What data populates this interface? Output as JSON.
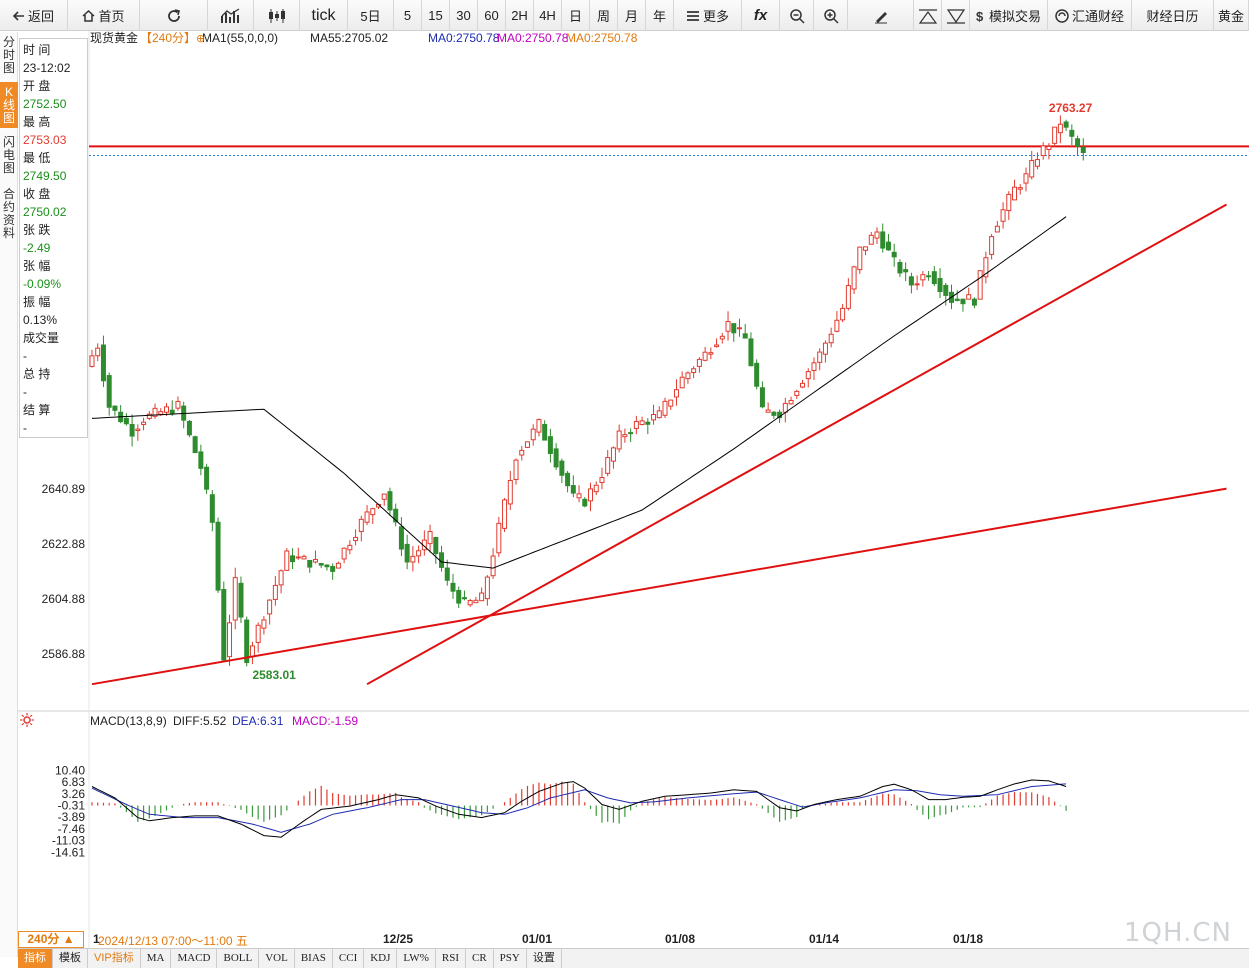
{
  "toolbar": {
    "back": "返回",
    "home": "首页",
    "tick": "tick",
    "periods": [
      "5日",
      "5",
      "15",
      "30",
      "60",
      "2H",
      "4H",
      "日",
      "周",
      "月",
      "年"
    ],
    "more": "更多",
    "fx": "fx",
    "sim_trade": "模拟交易",
    "huitong": "汇通财经",
    "calendar": "财经日历",
    "gold": "黄金"
  },
  "sidebar_tabs": [
    {
      "label": "分\n时\n图",
      "active": false
    },
    {
      "label": "K\n线\n图",
      "active": true
    },
    {
      "label": "闪\n电\n图",
      "active": false
    },
    {
      "label": "合\n约\n资\n料",
      "active": false
    }
  ],
  "info_panel": [
    {
      "label": "时 间",
      "value": "23-12:02",
      "color": "plain"
    },
    {
      "label": "开 盘",
      "value": "2752.50",
      "color": "green"
    },
    {
      "label": "最 高",
      "value": "2753.03",
      "color": "red"
    },
    {
      "label": "最 低",
      "value": "2749.50",
      "color": "green"
    },
    {
      "label": "收 盘",
      "value": "2750.02",
      "color": "green"
    },
    {
      "label": "张 跌",
      "value": "-2.49",
      "color": "green"
    },
    {
      "label": "张 幅",
      "value": "-0.09%",
      "color": "green"
    },
    {
      "label": "振 幅",
      "value": "0.13%",
      "color": "plain"
    },
    {
      "label": "成交量",
      "value": "-",
      "color": "plain"
    },
    {
      "label": "总 持",
      "value": "-",
      "color": "plain"
    },
    {
      "label": "结 算",
      "value": "-",
      "color": "plain"
    }
  ],
  "legend": {
    "name": "现货黄金",
    "period": "【240分】",
    "ma1": "MA1(55,0,0,0)",
    "ma55": "MA55:2705.02",
    "ma0a": "MA0:2750.78",
    "ma0b": "MA0:2750.78",
    "ma0c": "MA0:2750.78"
  },
  "macd_legend": {
    "name": "MACD(13,8,9)",
    "diff": "DIFF:5.52",
    "dea": "DEA:6.31",
    "macd": "MACD:-1.59"
  },
  "bottom_tabs": [
    "指标",
    "模板",
    "VIP指标",
    "MA",
    "MACD",
    "BOLL",
    "VOL",
    "BIAS",
    "CCI",
    "KDJ",
    "LW%",
    "RSI",
    "CR",
    "PSY",
    "设置"
  ],
  "period_box": "240分 ▲",
  "date_readout": "2024/12/13 07:00～11:00 五",
  "watermark": "1QH.CN",
  "colors": {
    "up": "#e23a2e",
    "down": "#2e8b2e",
    "trend": "#e01010",
    "accent": "#f08a24",
    "ma": "#000000",
    "dea": "#1e2bb0"
  },
  "chart_data": [
    {
      "type": "candlestick",
      "title": "现货黄金 240分",
      "y_ticks": [
        2640.89,
        2622.88,
        2604.88,
        2586.88
      ],
      "x_ticks": [
        "12/25",
        "01/01",
        "01/08",
        "01/14",
        "01/18"
      ],
      "x_first_label": "1",
      "high_label": "2763.27",
      "low_label": "2583.01",
      "current_price": 2750.02,
      "anchors": [
        [
          0,
          2681
        ],
        [
          2,
          2688
        ],
        [
          4,
          2668
        ],
        [
          8,
          2660
        ],
        [
          10,
          2664
        ],
        [
          16,
          2668
        ],
        [
          20,
          2648
        ],
        [
          22,
          2630
        ],
        [
          24,
          2586
        ],
        [
          26,
          2610
        ],
        [
          28,
          2586
        ],
        [
          31,
          2600
        ],
        [
          35,
          2619
        ],
        [
          39,
          2617
        ],
        [
          43,
          2615
        ],
        [
          48,
          2630
        ],
        [
          52,
          2640
        ],
        [
          56,
          2617
        ],
        [
          60,
          2625
        ],
        [
          63,
          2610
        ],
        [
          66,
          2603
        ],
        [
          69,
          2605
        ],
        [
          71,
          2620
        ],
        [
          75,
          2652
        ],
        [
          79,
          2662
        ],
        [
          82,
          2650
        ],
        [
          85,
          2638
        ],
        [
          87,
          2637
        ],
        [
          90,
          2646
        ],
        [
          93,
          2658
        ],
        [
          96,
          2662
        ],
        [
          100,
          2665
        ],
        [
          104,
          2677
        ],
        [
          108,
          2685
        ],
        [
          112,
          2695
        ],
        [
          115,
          2690
        ],
        [
          118,
          2666
        ],
        [
          121,
          2666
        ],
        [
          125,
          2677
        ],
        [
          128,
          2685
        ],
        [
          132,
          2700
        ],
        [
          135,
          2719
        ],
        [
          138,
          2725
        ],
        [
          141,
          2715
        ],
        [
          144,
          2708
        ],
        [
          147,
          2712
        ],
        [
          151,
          2703
        ],
        [
          155,
          2703
        ],
        [
          158,
          2725
        ],
        [
          162,
          2739
        ],
        [
          164,
          2743
        ],
        [
          166,
          2750
        ],
        [
          168,
          2754
        ],
        [
          170,
          2761
        ],
        [
          174,
          2750
        ]
      ],
      "ma_curve": [
        [
          0,
          2664
        ],
        [
          30,
          2667
        ],
        [
          44,
          2646
        ],
        [
          61,
          2617
        ],
        [
          70,
          2615
        ],
        [
          96,
          2634
        ],
        [
          112,
          2654
        ],
        [
          140,
          2691
        ],
        [
          155,
          2710
        ],
        [
          170,
          2730
        ]
      ],
      "trend_lines": [
        {
          "from": [
            0,
            2577
          ],
          "to": [
            198,
            2641
          ]
        },
        {
          "from": [
            48,
            2577
          ],
          "to": [
            198,
            2734
          ]
        }
      ],
      "horizontal_lines": [
        2753.03
      ]
    },
    {
      "type": "macd",
      "y_ticks": [
        10.4,
        6.83,
        3.26,
        -0.31,
        -3.89,
        -7.46,
        -11.03,
        -14.61
      ],
      "diff_anchors": [
        [
          0,
          5.5
        ],
        [
          4,
          2
        ],
        [
          8,
          -4
        ],
        [
          10,
          -5
        ],
        [
          14,
          -4
        ],
        [
          18,
          -3.5
        ],
        [
          22,
          -3.5
        ],
        [
          26,
          -6
        ],
        [
          30,
          -9.5
        ],
        [
          33,
          -10
        ],
        [
          37,
          -5
        ],
        [
          40,
          -1.5
        ],
        [
          45,
          -0.5
        ],
        [
          50,
          1.5
        ],
        [
          53,
          3
        ],
        [
          57,
          2
        ],
        [
          60,
          -0.5
        ],
        [
          64,
          -3
        ],
        [
          68,
          -4
        ],
        [
          72,
          -2.5
        ],
        [
          75,
          1
        ],
        [
          78,
          4
        ],
        [
          82,
          6.5
        ],
        [
          84,
          7
        ],
        [
          86,
          5
        ],
        [
          89,
          0
        ],
        [
          92,
          -1.5
        ],
        [
          96,
          1
        ],
        [
          100,
          2.5
        ],
        [
          104,
          3
        ],
        [
          108,
          3.5
        ],
        [
          112,
          4.5
        ],
        [
          116,
          4
        ],
        [
          120,
          -1
        ],
        [
          123,
          -2
        ],
        [
          126,
          0
        ],
        [
          130,
          1.5
        ],
        [
          134,
          2.5
        ],
        [
          138,
          5.5
        ],
        [
          140,
          6.2
        ],
        [
          143,
          4.5
        ],
        [
          146,
          1.5
        ],
        [
          149,
          1.5
        ],
        [
          152,
          2.2
        ],
        [
          155,
          2.5
        ],
        [
          158,
          4.5
        ],
        [
          161,
          6.3
        ],
        [
          164,
          7.5
        ],
        [
          167,
          7.2
        ],
        [
          170,
          5.5
        ]
      ],
      "dea_anchors": [
        [
          0,
          5
        ],
        [
          6,
          0
        ],
        [
          10,
          -3
        ],
        [
          16,
          -4
        ],
        [
          22,
          -4
        ],
        [
          28,
          -6
        ],
        [
          33,
          -8.5
        ],
        [
          38,
          -6
        ],
        [
          42,
          -3
        ],
        [
          48,
          -1
        ],
        [
          54,
          1.5
        ],
        [
          58,
          1.5
        ],
        [
          63,
          -0.5
        ],
        [
          68,
          -2.5
        ],
        [
          72,
          -3
        ],
        [
          76,
          -1
        ],
        [
          80,
          2
        ],
        [
          86,
          4.5
        ],
        [
          90,
          2
        ],
        [
          94,
          0.5
        ],
        [
          98,
          0.8
        ],
        [
          104,
          2
        ],
        [
          110,
          3
        ],
        [
          116,
          3.8
        ],
        [
          120,
          1.5
        ],
        [
          124,
          -0.8
        ],
        [
          128,
          0.5
        ],
        [
          134,
          2
        ],
        [
          140,
          4.5
        ],
        [
          144,
          4.2
        ],
        [
          148,
          3
        ],
        [
          152,
          2.5
        ],
        [
          158,
          3
        ],
        [
          164,
          5.5
        ],
        [
          170,
          6.31
        ]
      ]
    }
  ]
}
